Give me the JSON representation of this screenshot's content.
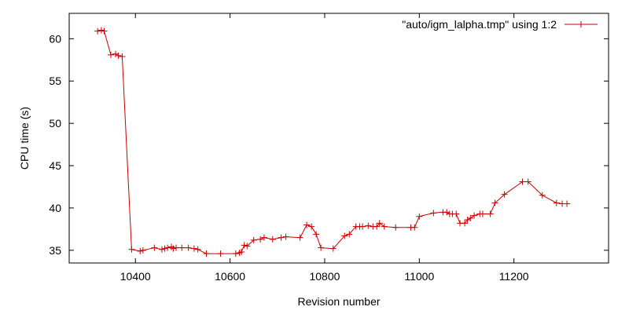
{
  "chart_data": {
    "type": "line",
    "title": "",
    "xlabel": "Revision number",
    "ylabel": "CPU time (s)",
    "xlim": [
      10260,
      11400
    ],
    "ylim": [
      33.5,
      63
    ],
    "x_ticks": [
      10400,
      10600,
      10800,
      11000,
      11200
    ],
    "x_tick_labels": [
      "10400",
      "10600",
      "10800",
      "11000",
      "11200"
    ],
    "y_ticks": [
      35,
      40,
      45,
      50,
      55,
      60
    ],
    "y_tick_labels": [
      "35",
      "40",
      "45",
      "50",
      "55",
      "60"
    ],
    "grid": false,
    "legend_position": "top-right",
    "series": [
      {
        "name": "\"auto/igm_lalpha.tmp\" using 1:2",
        "color": "#cc0000",
        "marker": "plus",
        "points": [
          [
            10320,
            60.9
          ],
          [
            10328,
            61.0
          ],
          [
            10334,
            60.9
          ],
          [
            10348,
            58.1
          ],
          [
            10358,
            58.2
          ],
          [
            10364,
            58.0
          ],
          [
            10372,
            57.9
          ],
          [
            10392,
            35.1
          ],
          [
            10410,
            34.9
          ],
          [
            10416,
            35.0
          ],
          [
            10440,
            35.3
          ],
          [
            10456,
            35.1
          ],
          [
            10462,
            35.2
          ],
          [
            10468,
            35.3
          ],
          [
            10476,
            35.4
          ],
          [
            10480,
            35.2
          ],
          [
            10486,
            35.3
          ],
          [
            10498,
            35.3
          ],
          [
            10512,
            35.3
          ],
          [
            10524,
            35.2
          ],
          [
            10532,
            35.1
          ],
          [
            10550,
            34.6
          ],
          [
            10580,
            34.6
          ],
          [
            10612,
            34.6
          ],
          [
            10620,
            34.7
          ],
          [
            10624,
            34.8
          ],
          [
            10630,
            35.6
          ],
          [
            10636,
            35.5
          ],
          [
            10650,
            36.2
          ],
          [
            10664,
            36.3
          ],
          [
            10672,
            36.5
          ],
          [
            10690,
            36.3
          ],
          [
            10708,
            36.5
          ],
          [
            10718,
            36.6
          ],
          [
            10748,
            36.5
          ],
          [
            10762,
            38.0
          ],
          [
            10772,
            37.8
          ],
          [
            10782,
            36.9
          ],
          [
            10792,
            35.3
          ],
          [
            10818,
            35.2
          ],
          [
            10842,
            36.7
          ],
          [
            10852,
            36.9
          ],
          [
            10866,
            37.8
          ],
          [
            10874,
            37.8
          ],
          [
            10880,
            37.8
          ],
          [
            10892,
            37.9
          ],
          [
            10902,
            37.8
          ],
          [
            10910,
            37.8
          ],
          [
            10916,
            38.2
          ],
          [
            10926,
            37.8
          ],
          [
            10950,
            37.7
          ],
          [
            10982,
            37.7
          ],
          [
            10990,
            37.7
          ],
          [
            11000,
            39.0
          ],
          [
            11030,
            39.4
          ],
          [
            11050,
            39.5
          ],
          [
            11058,
            39.5
          ],
          [
            11064,
            39.3
          ],
          [
            11070,
            39.3
          ],
          [
            11078,
            39.3
          ],
          [
            11086,
            38.2
          ],
          [
            11096,
            38.2
          ],
          [
            11102,
            38.6
          ],
          [
            11108,
            38.8
          ],
          [
            11116,
            39.1
          ],
          [
            11128,
            39.3
          ],
          [
            11134,
            39.3
          ],
          [
            11150,
            39.3
          ],
          [
            11160,
            40.6
          ],
          [
            11180,
            41.6
          ],
          [
            11218,
            43.1
          ],
          [
            11230,
            43.1
          ],
          [
            11260,
            41.5
          ],
          [
            11290,
            40.6
          ],
          [
            11302,
            40.5
          ],
          [
            11312,
            40.5
          ]
        ]
      }
    ]
  }
}
